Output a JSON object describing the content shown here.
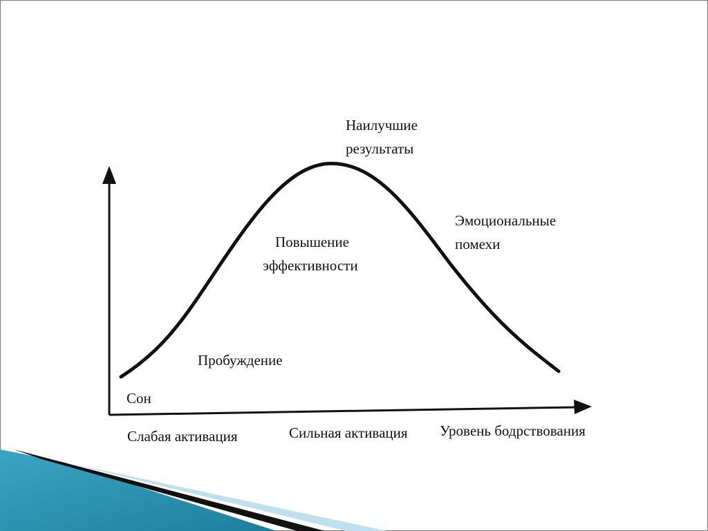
{
  "diagram": {
    "labels": {
      "peak": [
        "Наилучшие",
        "результаты"
      ],
      "emotional": [
        "Эмоциональные",
        "помехи"
      ],
      "efficiency": [
        "Повышение",
        "эффективности"
      ],
      "awakening": "Пробуждение",
      "sleep": "Сон"
    },
    "axis_labels": {
      "weak": "Слабая активация",
      "strong": "Сильная активация",
      "x_axis": "Уровень бодрствования"
    }
  }
}
